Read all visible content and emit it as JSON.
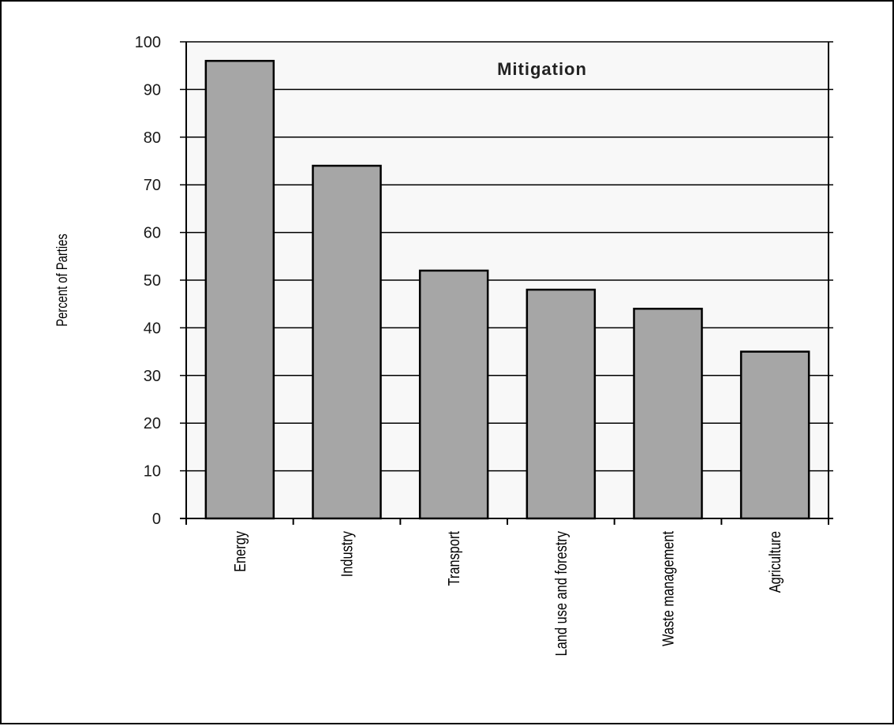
{
  "chart_data": {
    "type": "bar",
    "title": "Mitigation",
    "xlabel": "",
    "ylabel": "Percent of Parties",
    "categories": [
      "Energy",
      "Industry",
      "Transport",
      "Land use and forestry",
      "Waste management",
      "Agriculture"
    ],
    "values": [
      96,
      74,
      52,
      48,
      44,
      35
    ],
    "ylim": [
      0,
      100
    ],
    "yticks": [
      "0",
      "10",
      "20",
      "30",
      "40",
      "50",
      "60",
      "70",
      "80",
      "90",
      "100"
    ],
    "grid": true,
    "legend": "none",
    "colors": {
      "bar_fill": "#a6a6a6",
      "bar_stroke": "#000000",
      "plot_background": "#f8f8f8",
      "gridline": "#000000"
    }
  }
}
